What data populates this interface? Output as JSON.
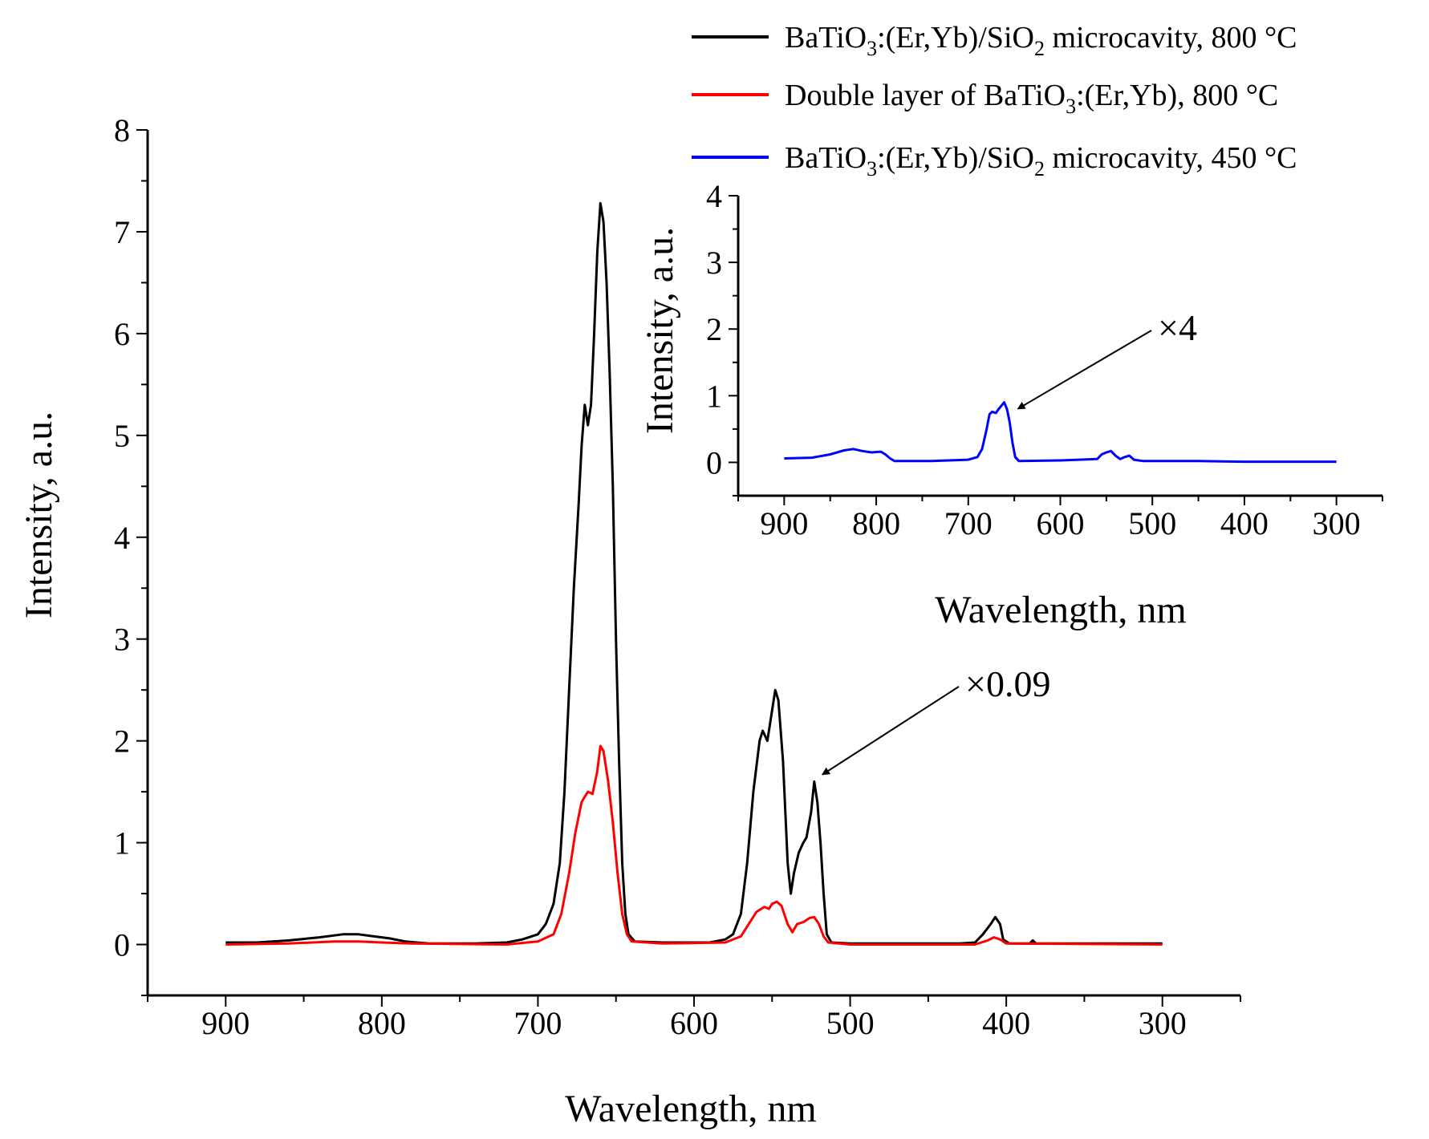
{
  "chart_data": [
    {
      "id": "main",
      "type": "line",
      "xlabel": "Wavelength, nm",
      "ylabel": "Intensity, a.u.",
      "xlim": [
        950,
        250
      ],
      "ylim": [
        -0.5,
        8
      ],
      "x_ticks": [
        900,
        800,
        700,
        600,
        500,
        400,
        300
      ],
      "x_tick_labels": [
        "900",
        "800",
        "700",
        "600",
        "500",
        "400",
        "300"
      ],
      "y_ticks": [
        0,
        1,
        2,
        3,
        4,
        5,
        6,
        7,
        8
      ],
      "y_tick_labels": [
        "0",
        "1",
        "2",
        "3",
        "4",
        "5",
        "6",
        "7",
        "8"
      ],
      "grid": false,
      "series": [
        {
          "name_parts": [
            "BaTiO",
            "3",
            ":(Er,Yb)/SiO",
            "2",
            " microcavity, 800 °C"
          ],
          "color": "#000000",
          "points": [
            [
              900,
              0.02
            ],
            [
              880,
              0.02
            ],
            [
              860,
              0.04
            ],
            [
              840,
              0.07
            ],
            [
              825,
              0.1
            ],
            [
              815,
              0.1
            ],
            [
              805,
              0.08
            ],
            [
              795,
              0.06
            ],
            [
              785,
              0.03
            ],
            [
              770,
              0.01
            ],
            [
              740,
              0.01
            ],
            [
              720,
              0.02
            ],
            [
              710,
              0.05
            ],
            [
              700,
              0.1
            ],
            [
              695,
              0.2
            ],
            [
              690,
              0.4
            ],
            [
              686,
              0.8
            ],
            [
              683,
              1.5
            ],
            [
              680,
              2.5
            ],
            [
              677,
              3.5
            ],
            [
              674,
              4.3
            ],
            [
              672,
              4.9
            ],
            [
              670,
              5.3
            ],
            [
              668,
              5.1
            ],
            [
              666,
              5.3
            ],
            [
              664,
              6.0
            ],
            [
              662,
              6.8
            ],
            [
              660,
              7.28
            ],
            [
              658,
              7.1
            ],
            [
              656,
              6.5
            ],
            [
              654,
              5.6
            ],
            [
              652,
              4.5
            ],
            [
              650,
              3.0
            ],
            [
              648,
              1.8
            ],
            [
              646,
              0.8
            ],
            [
              644,
              0.3
            ],
            [
              642,
              0.1
            ],
            [
              638,
              0.03
            ],
            [
              620,
              0.02
            ],
            [
              590,
              0.02
            ],
            [
              580,
              0.05
            ],
            [
              575,
              0.1
            ],
            [
              570,
              0.3
            ],
            [
              566,
              0.8
            ],
            [
              562,
              1.5
            ],
            [
              558,
              2.0
            ],
            [
              556,
              2.1
            ],
            [
              553,
              2.0
            ],
            [
              550,
              2.3
            ],
            [
              548,
              2.5
            ],
            [
              546,
              2.4
            ],
            [
              543,
              1.8
            ],
            [
              540,
              0.8
            ],
            [
              538,
              0.5
            ],
            [
              536,
              0.7
            ],
            [
              533,
              0.9
            ],
            [
              530,
              1.0
            ],
            [
              528,
              1.05
            ],
            [
              525,
              1.3
            ],
            [
              523,
              1.6
            ],
            [
              521,
              1.4
            ],
            [
              519,
              1.0
            ],
            [
              517,
              0.5
            ],
            [
              515,
              0.1
            ],
            [
              512,
              0.02
            ],
            [
              500,
              0.01
            ],
            [
              480,
              0.01
            ],
            [
              430,
              0.01
            ],
            [
              420,
              0.02
            ],
            [
              415,
              0.1
            ],
            [
              410,
              0.2
            ],
            [
              407,
              0.27
            ],
            [
              404,
              0.2
            ],
            [
              402,
              0.05
            ],
            [
              398,
              0.01
            ],
            [
              385,
              0.01
            ],
            [
              383,
              0.04
            ],
            [
              381,
              0.01
            ],
            [
              360,
              0.01
            ],
            [
              300,
              0.01
            ]
          ]
        },
        {
          "name_parts": [
            "Double layer of BaTiO",
            "3",
            ":(Er,Yb), 800 °C"
          ],
          "color": "#ff0000",
          "points": [
            [
              900,
              0.0
            ],
            [
              860,
              0.01
            ],
            [
              830,
              0.03
            ],
            [
              815,
              0.03
            ],
            [
              800,
              0.02
            ],
            [
              780,
              0.01
            ],
            [
              720,
              0.0
            ],
            [
              700,
              0.03
            ],
            [
              690,
              0.1
            ],
            [
              685,
              0.3
            ],
            [
              680,
              0.7
            ],
            [
              676,
              1.1
            ],
            [
              672,
              1.4
            ],
            [
              668,
              1.5
            ],
            [
              665,
              1.48
            ],
            [
              662,
              1.7
            ],
            [
              660,
              1.95
            ],
            [
              658,
              1.9
            ],
            [
              655,
              1.6
            ],
            [
              652,
              1.2
            ],
            [
              649,
              0.7
            ],
            [
              646,
              0.3
            ],
            [
              643,
              0.1
            ],
            [
              640,
              0.03
            ],
            [
              620,
              0.01
            ],
            [
              580,
              0.02
            ],
            [
              570,
              0.08
            ],
            [
              565,
              0.2
            ],
            [
              560,
              0.32
            ],
            [
              555,
              0.37
            ],
            [
              552,
              0.35
            ],
            [
              550,
              0.4
            ],
            [
              547,
              0.42
            ],
            [
              544,
              0.38
            ],
            [
              540,
              0.2
            ],
            [
              537,
              0.12
            ],
            [
              534,
              0.2
            ],
            [
              530,
              0.22
            ],
            [
              526,
              0.26
            ],
            [
              523,
              0.27
            ],
            [
              520,
              0.2
            ],
            [
              517,
              0.08
            ],
            [
              514,
              0.02
            ],
            [
              500,
              0.0
            ],
            [
              420,
              0.0
            ],
            [
              412,
              0.04
            ],
            [
              408,
              0.07
            ],
            [
              404,
              0.05
            ],
            [
              400,
              0.01
            ],
            [
              300,
              0.0
            ]
          ]
        }
      ],
      "annotation": {
        "text": "×0.09",
        "target": [
          523,
          1.7
        ]
      }
    },
    {
      "id": "inset",
      "type": "line",
      "xlabel": "Wavelength, nm",
      "ylabel": "Intensity, a.u.",
      "xlim": [
        950,
        250
      ],
      "ylim": [
        -0.5,
        4
      ],
      "x_ticks": [
        900,
        800,
        700,
        600,
        500,
        400,
        300
      ],
      "x_tick_labels": [
        "900",
        "800",
        "700",
        "600",
        "500",
        "400",
        "300"
      ],
      "y_ticks": [
        0,
        1,
        2,
        3,
        4
      ],
      "y_tick_labels": [
        "0",
        "1",
        "2",
        "3",
        "4"
      ],
      "grid": false,
      "series": [
        {
          "name_parts": [
            "BaTiO",
            "3",
            ":(Er,Yb)/SiO",
            "2",
            " microcavity, 450 °C"
          ],
          "color": "#0000ff",
          "points": [
            [
              900,
              0.06
            ],
            [
              870,
              0.07
            ],
            [
              850,
              0.12
            ],
            [
              835,
              0.18
            ],
            [
              825,
              0.2
            ],
            [
              815,
              0.17
            ],
            [
              805,
              0.15
            ],
            [
              795,
              0.16
            ],
            [
              790,
              0.12
            ],
            [
              785,
              0.06
            ],
            [
              780,
              0.02
            ],
            [
              740,
              0.02
            ],
            [
              700,
              0.04
            ],
            [
              690,
              0.08
            ],
            [
              685,
              0.2
            ],
            [
              680,
              0.5
            ],
            [
              677,
              0.72
            ],
            [
              674,
              0.76
            ],
            [
              670,
              0.74
            ],
            [
              667,
              0.8
            ],
            [
              664,
              0.85
            ],
            [
              661,
              0.9
            ],
            [
              658,
              0.8
            ],
            [
              655,
              0.6
            ],
            [
              652,
              0.3
            ],
            [
              649,
              0.08
            ],
            [
              645,
              0.02
            ],
            [
              600,
              0.03
            ],
            [
              560,
              0.05
            ],
            [
              555,
              0.12
            ],
            [
              550,
              0.15
            ],
            [
              545,
              0.17
            ],
            [
              540,
              0.1
            ],
            [
              535,
              0.05
            ],
            [
              530,
              0.08
            ],
            [
              525,
              0.1
            ],
            [
              520,
              0.04
            ],
            [
              510,
              0.02
            ],
            [
              450,
              0.02
            ],
            [
              400,
              0.01
            ],
            [
              300,
              0.01
            ]
          ]
        }
      ],
      "annotation": {
        "text": "×4",
        "target": [
          655,
          0.85
        ]
      }
    }
  ]
}
